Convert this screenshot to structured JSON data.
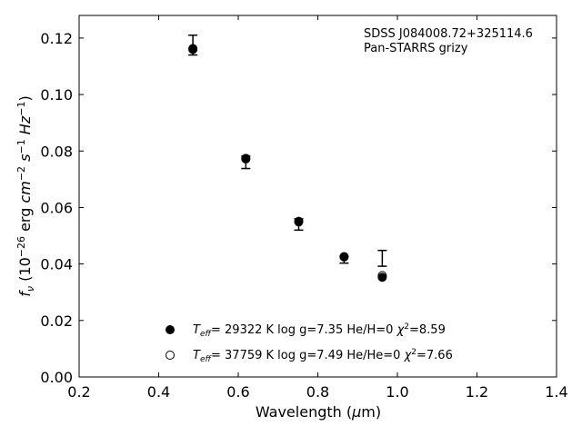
{
  "chart_data": {
    "type": "scatter",
    "annotation_lines": [
      "SDSS J084008.72+325114.6",
      "Pan-STARRS grizy"
    ],
    "xlabel": "Wavelength (μm)",
    "ylabel": "f_ν (10^-26 erg cm^-2 s^-1 Hz^-1)",
    "xlim": [
      0.2,
      1.4
    ],
    "ylim": [
      0.0,
      0.128
    ],
    "xticks": [
      0.2,
      0.4,
      0.6,
      0.8,
      1.0,
      1.2,
      1.4
    ],
    "xtick_labels": [
      "0.2",
      "0.4",
      "0.6",
      "0.8",
      "1.0",
      "1.2",
      "1.4"
    ],
    "yticks": [
      0.0,
      0.02,
      0.04,
      0.06,
      0.08,
      0.1,
      0.12
    ],
    "ytick_labels": [
      "0.00",
      "0.02",
      "0.04",
      "0.06",
      "0.08",
      "0.10",
      "0.12"
    ],
    "grid": false,
    "legend_placement": "bottom-center",
    "observed": {
      "x": [
        0.486,
        0.619,
        0.752,
        0.866,
        0.962
      ],
      "y": [
        0.1175,
        0.076,
        0.054,
        0.0415,
        0.042
      ],
      "yerr": [
        0.0035,
        0.0022,
        0.002,
        0.0012,
        0.0028
      ]
    },
    "series": [
      {
        "marker": "filled-circle",
        "legend": "T_eff= 29322 K  log g=7.35  He/H=0  χ²=8.59",
        "x": [
          0.486,
          0.619,
          0.752,
          0.866,
          0.962
        ],
        "y": [
          0.116,
          0.0772,
          0.0549,
          0.0425,
          0.0353
        ]
      },
      {
        "marker": "open-circle",
        "legend": "T_eff= 37759 K  log g=7.49  He/He=0  χ²=7.66",
        "x": [
          0.486,
          0.619,
          0.752,
          0.866,
          0.962
        ],
        "y": [
          0.1163,
          0.0774,
          0.0551,
          0.0426,
          0.0359
        ]
      }
    ]
  }
}
